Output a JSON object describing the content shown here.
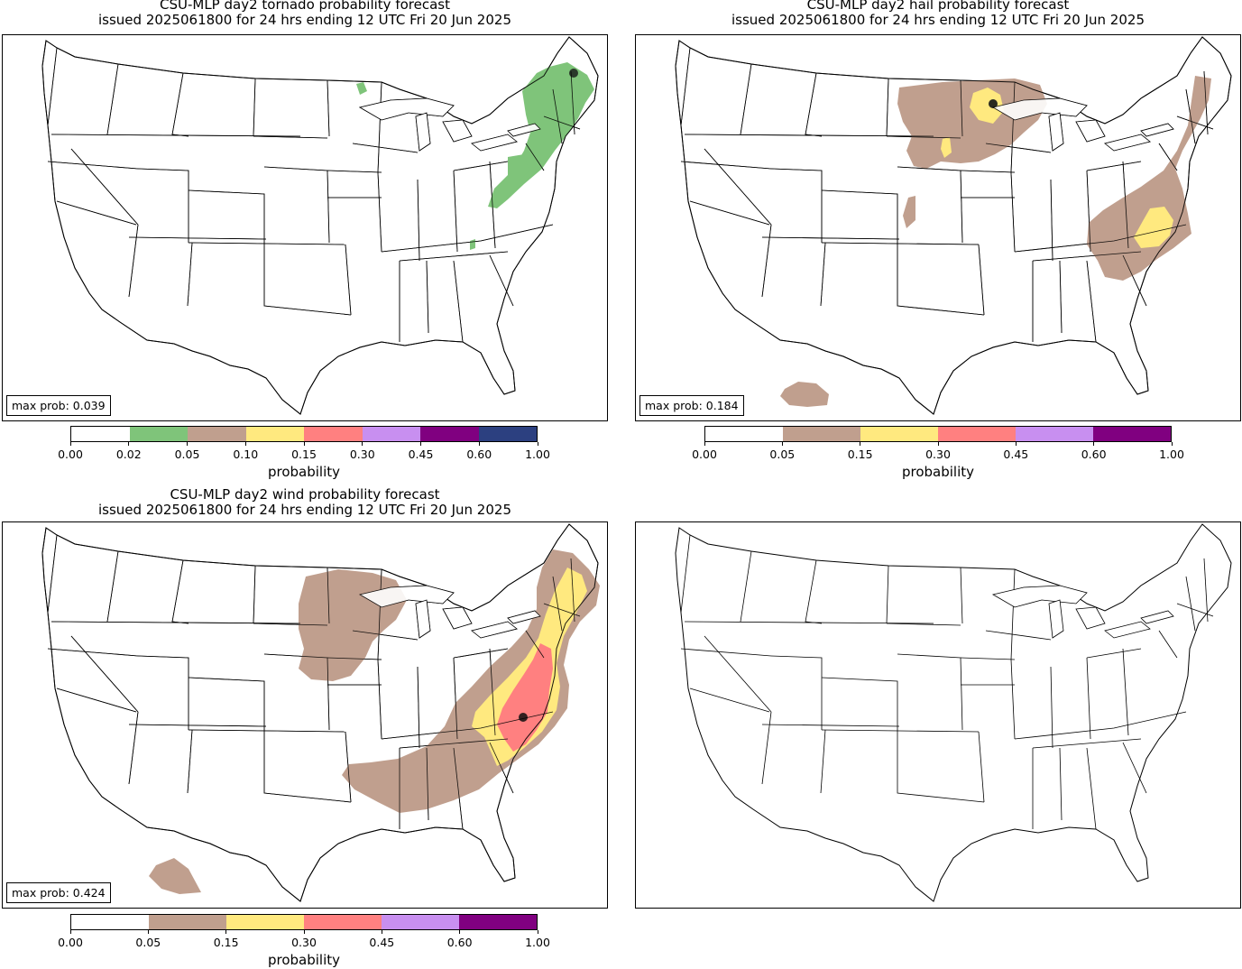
{
  "panels": [
    {
      "id": "tornado",
      "title_line1": "CSU-MLP day2 tornado probability forecast",
      "title_line2": "issued 2025061800 for 24 hrs ending 12 UTC Fri 20 Jun 2025",
      "max_prob_text": "max prob: 0.039",
      "colorbar": {
        "ticks": [
          "0.00",
          "0.02",
          "0.05",
          "0.10",
          "0.15",
          "0.30",
          "0.45",
          "0.60",
          "1.00"
        ],
        "colors": [
          "#ffffff",
          "#7fc47a",
          "#c09f8e",
          "#ffe97f",
          "#ff8080",
          "#c88ff0",
          "#800080",
          "#2c4080"
        ],
        "label": "probability"
      }
    },
    {
      "id": "hail",
      "title_line1": "CSU-MLP day2 hail probability forecast",
      "title_line2": "issued 2025061800 for 24 hrs ending 12 UTC Fri 20 Jun 2025",
      "max_prob_text": "max prob: 0.184",
      "colorbar": {
        "ticks": [
          "0.00",
          "0.05",
          "0.15",
          "0.30",
          "0.45",
          "0.60",
          "1.00"
        ],
        "colors": [
          "#ffffff",
          "#c09f8e",
          "#ffe97f",
          "#ff8080",
          "#c88ff0",
          "#800080"
        ],
        "label": "probability"
      }
    },
    {
      "id": "wind",
      "title_line1": "CSU-MLP day2 wind probability forecast",
      "title_line2": "issued 2025061800 for 24 hrs ending 12 UTC Fri 20 Jun 2025",
      "max_prob_text": "max prob: 0.424",
      "colorbar": {
        "ticks": [
          "0.00",
          "0.05",
          "0.15",
          "0.30",
          "0.45",
          "0.60",
          "1.00"
        ],
        "colors": [
          "#ffffff",
          "#c09f8e",
          "#ffe97f",
          "#ff8080",
          "#c88ff0",
          "#800080"
        ],
        "label": "probability"
      }
    },
    {
      "id": "empty",
      "title_line1": "",
      "title_line2": "",
      "max_prob_text": ""
    }
  ]
}
